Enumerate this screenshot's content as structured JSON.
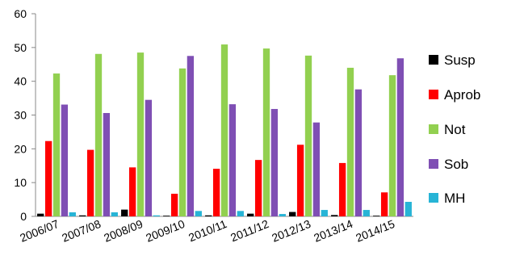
{
  "chart_data": {
    "type": "bar",
    "categories": [
      "2006/07",
      "2007/08",
      "2008/09",
      "2009/10",
      "2010/11",
      "2011/12",
      "2012/13",
      "2013/14",
      "2014/15"
    ],
    "series": [
      {
        "name": "Susp",
        "color": "#000000",
        "values": [
          0.8,
          0.3,
          2.0,
          0.2,
          0.3,
          0.8,
          1.3,
          0.4,
          0.2
        ]
      },
      {
        "name": "Aprob",
        "color": "#ff0000",
        "values": [
          22.3,
          19.7,
          14.5,
          6.7,
          14.1,
          16.7,
          21.2,
          15.8,
          7.1
        ]
      },
      {
        "name": "Not",
        "color": "#92d050",
        "values": [
          42.3,
          48.1,
          48.5,
          43.8,
          50.9,
          49.7,
          47.6,
          44.0,
          41.8
        ]
      },
      {
        "name": "Sob",
        "color": "#7f4fb4",
        "values": [
          33.1,
          30.6,
          34.5,
          47.5,
          33.2,
          31.8,
          27.8,
          37.6,
          46.8
        ]
      },
      {
        "name": "MH",
        "color": "#27b4d6",
        "values": [
          1.2,
          1.2,
          0.3,
          1.6,
          1.6,
          0.7,
          1.9,
          1.9,
          4.3
        ]
      }
    ],
    "yticks": [
      "0",
      "10",
      "20",
      "30",
      "40",
      "50",
      "60"
    ],
    "ylim": [
      0,
      60
    ],
    "grid": false,
    "legend_position": "right"
  }
}
